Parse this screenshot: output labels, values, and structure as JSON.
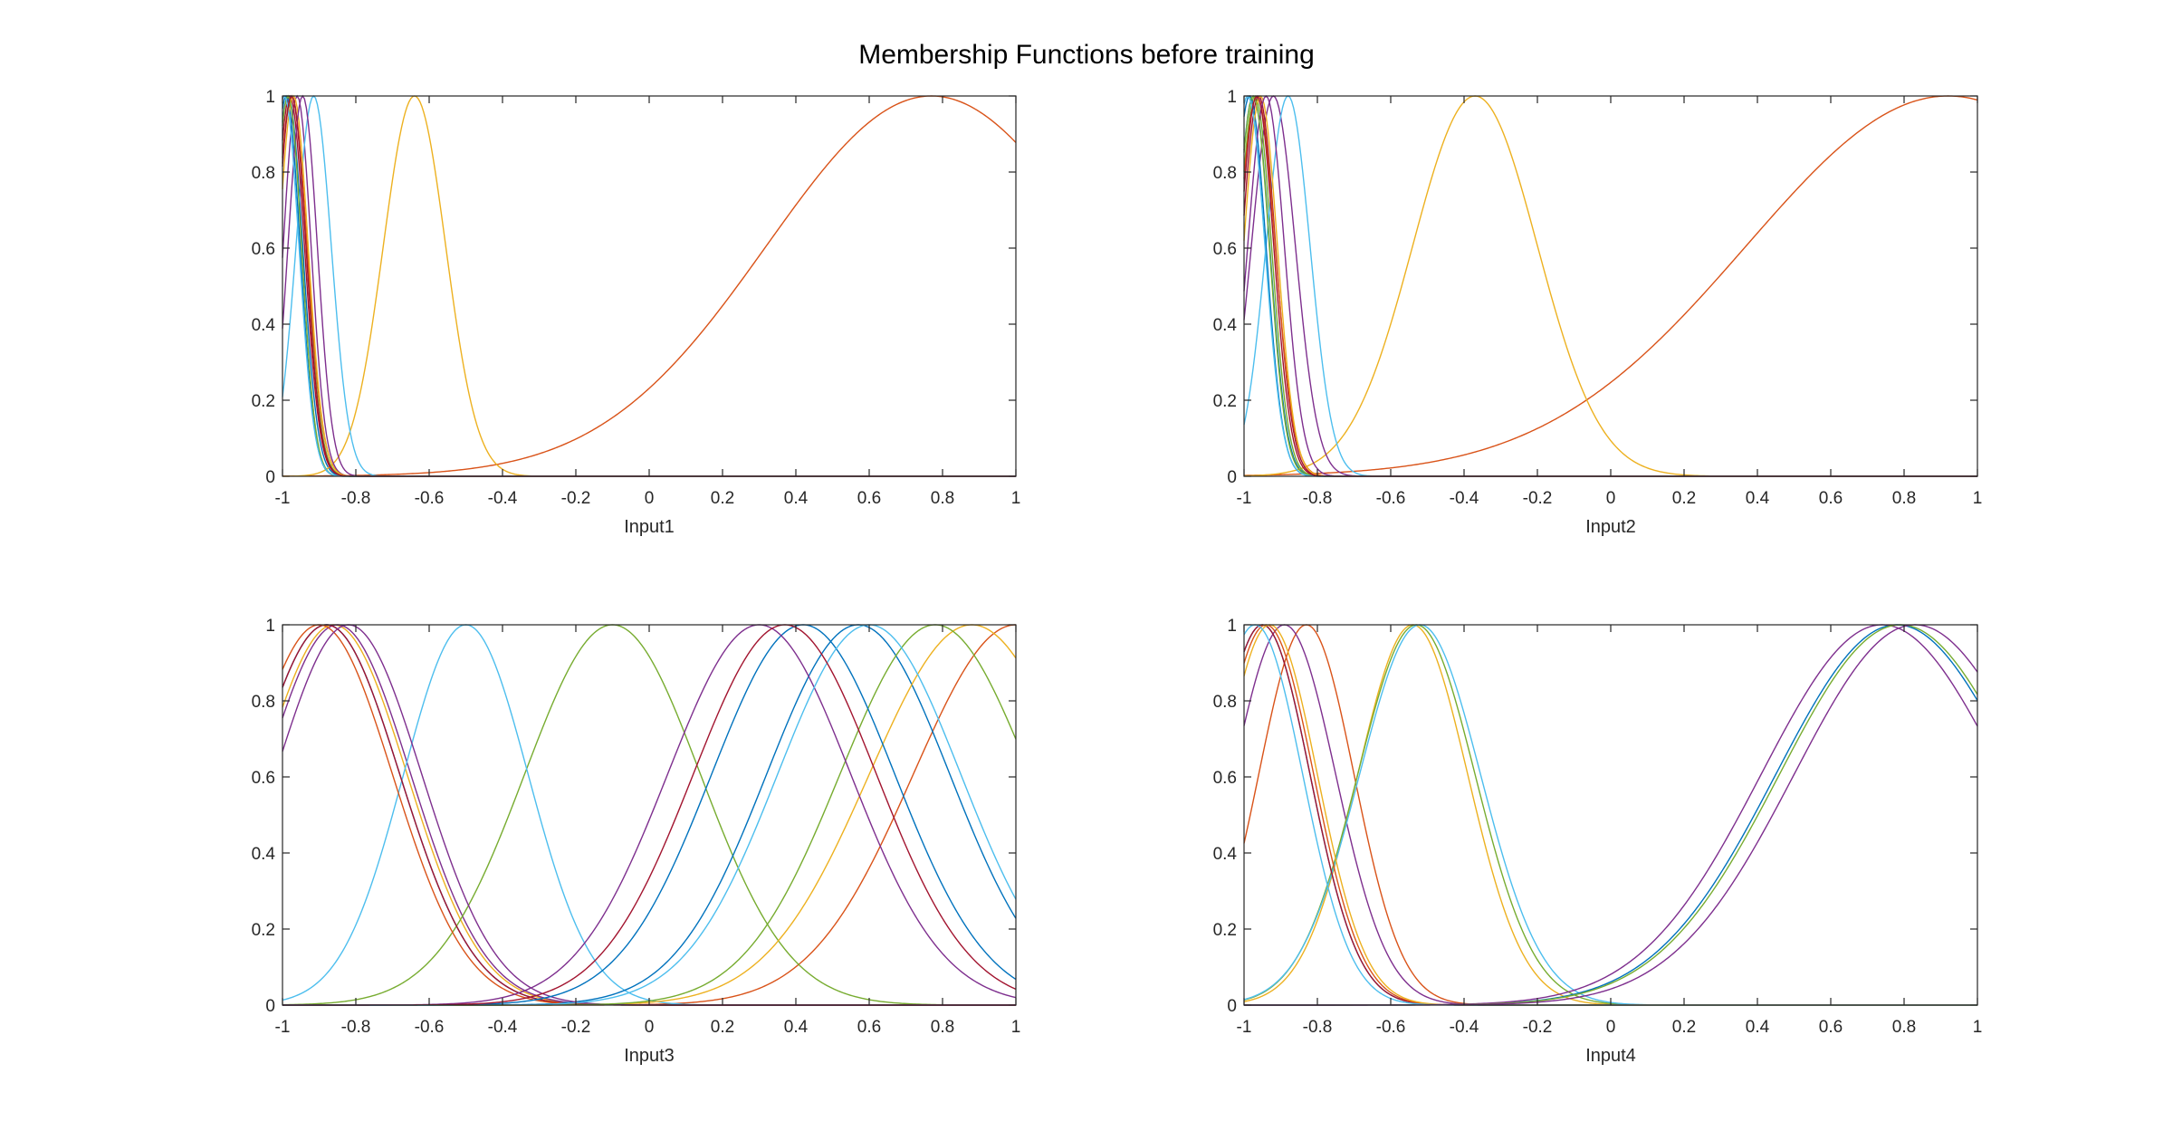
{
  "figure": {
    "title": "Membership Functions before training"
  },
  "chart_data": [
    {
      "type": "line",
      "title": "",
      "xlabel": "Input1",
      "ylabel": "",
      "xlim": [
        -1,
        1
      ],
      "ylim": [
        0,
        1
      ],
      "xticks": [
        -1,
        -0.8,
        -0.6,
        -0.4,
        -0.2,
        0,
        0.2,
        0.4,
        0.6,
        0.8,
        1
      ],
      "yticks": [
        0,
        0.2,
        0.4,
        0.6,
        0.8,
        1
      ],
      "grid": false,
      "series_kind": "gaussian membership functions",
      "series": [
        {
          "center": -0.985,
          "sigma": 0.04,
          "color": "#0072BD"
        },
        {
          "center": 0.77,
          "sigma": 0.45,
          "color": "#D95319"
        },
        {
          "center": -0.64,
          "sigma": 0.085,
          "color": "#EDB120"
        },
        {
          "center": -0.96,
          "sigma": 0.038,
          "color": "#7E2F8E"
        },
        {
          "center": -0.975,
          "sigma": 0.04,
          "color": "#77AC30"
        },
        {
          "center": -0.915,
          "sigma": 0.048,
          "color": "#4DBEEE"
        },
        {
          "center": -0.98,
          "sigma": 0.04,
          "color": "#A2142F"
        },
        {
          "center": -0.99,
          "sigma": 0.038,
          "color": "#0072BD"
        },
        {
          "center": -0.975,
          "sigma": 0.042,
          "color": "#D95319"
        },
        {
          "center": -0.97,
          "sigma": 0.04,
          "color": "#EDB120"
        },
        {
          "center": -0.945,
          "sigma": 0.04,
          "color": "#7E2F8E"
        },
        {
          "center": -0.985,
          "sigma": 0.037,
          "color": "#77AC30"
        },
        {
          "center": -0.995,
          "sigma": 0.04,
          "color": "#4DBEEE"
        },
        {
          "center": -0.975,
          "sigma": 0.039,
          "color": "#A2142F"
        }
      ]
    },
    {
      "type": "line",
      "title": "",
      "xlabel": "Input2",
      "ylabel": "",
      "xlim": [
        -1,
        1
      ],
      "ylim": [
        0,
        1
      ],
      "xticks": [
        -1,
        -0.8,
        -0.6,
        -0.4,
        -0.2,
        0,
        0.2,
        0.4,
        0.6,
        0.8,
        1
      ],
      "yticks": [
        0,
        0.2,
        0.4,
        0.6,
        0.8,
        1
      ],
      "grid": false,
      "series_kind": "gaussian membership functions",
      "series": [
        {
          "center": -0.975,
          "sigma": 0.045,
          "color": "#0072BD"
        },
        {
          "center": 0.92,
          "sigma": 0.55,
          "color": "#D95319"
        },
        {
          "center": -0.37,
          "sigma": 0.17,
          "color": "#EDB120"
        },
        {
          "center": -0.92,
          "sigma": 0.06,
          "color": "#7E2F8E"
        },
        {
          "center": -0.97,
          "sigma": 0.045,
          "color": "#77AC30"
        },
        {
          "center": -0.88,
          "sigma": 0.06,
          "color": "#4DBEEE"
        },
        {
          "center": -0.96,
          "sigma": 0.046,
          "color": "#A2142F"
        },
        {
          "center": -0.985,
          "sigma": 0.045,
          "color": "#0072BD"
        },
        {
          "center": -0.965,
          "sigma": 0.05,
          "color": "#D95319"
        },
        {
          "center": -0.955,
          "sigma": 0.046,
          "color": "#EDB120"
        },
        {
          "center": -0.94,
          "sigma": 0.05,
          "color": "#7E2F8E"
        },
        {
          "center": -0.975,
          "sigma": 0.044,
          "color": "#77AC30"
        },
        {
          "center": -0.99,
          "sigma": 0.047,
          "color": "#4DBEEE"
        },
        {
          "center": -0.965,
          "sigma": 0.046,
          "color": "#A2142F"
        }
      ]
    },
    {
      "type": "line",
      "title": "",
      "xlabel": "Input3",
      "ylabel": "",
      "xlim": [
        -1,
        1
      ],
      "ylim": [
        0,
        1
      ],
      "xticks": [
        -1,
        -0.8,
        -0.6,
        -0.4,
        -0.2,
        0,
        0.2,
        0.4,
        0.6,
        0.8,
        1
      ],
      "yticks": [
        0,
        0.2,
        0.4,
        0.6,
        0.8,
        1
      ],
      "grid": false,
      "series_kind": "gaussian membership functions",
      "series": [
        {
          "center": -0.88,
          "sigma": 0.2,
          "color": "#0072BD"
        },
        {
          "center": 1.0,
          "sigma": 0.28,
          "color": "#D95319"
        },
        {
          "center": -0.86,
          "sigma": 0.2,
          "color": "#EDB120"
        },
        {
          "center": -0.85,
          "sigma": 0.2,
          "color": "#7E2F8E"
        },
        {
          "center": -0.1,
          "sigma": 0.24,
          "color": "#77AC30"
        },
        {
          "center": -0.5,
          "sigma": 0.17,
          "color": "#4DBEEE"
        },
        {
          "center": -0.88,
          "sigma": 0.2,
          "color": "#A2142F"
        },
        {
          "center": 0.57,
          "sigma": 0.25,
          "color": "#0072BD"
        },
        {
          "center": -0.9,
          "sigma": 0.2,
          "color": "#D95319"
        },
        {
          "center": 0.88,
          "sigma": 0.28,
          "color": "#EDB120"
        },
        {
          "center": -0.82,
          "sigma": 0.2,
          "color": "#7E2F8E"
        },
        {
          "center": 0.78,
          "sigma": 0.26,
          "color": "#77AC30"
        },
        {
          "center": 0.42,
          "sigma": 0.25,
          "color": "#0072BD"
        },
        {
          "center": 0.3,
          "sigma": 0.25,
          "color": "#7E2F8E"
        },
        {
          "center": 0.6,
          "sigma": 0.25,
          "color": "#4DBEEE"
        },
        {
          "center": 0.37,
          "sigma": 0.25,
          "color": "#A2142F"
        }
      ]
    },
    {
      "type": "line",
      "title": "",
      "xlabel": "Input4",
      "ylabel": "",
      "xlim": [
        -1,
        1
      ],
      "ylim": [
        0,
        1
      ],
      "xticks": [
        -1,
        -0.8,
        -0.6,
        -0.4,
        -0.2,
        0,
        0.2,
        0.4,
        0.6,
        0.8,
        1
      ],
      "yticks": [
        0,
        0.2,
        0.4,
        0.6,
        0.8,
        1
      ],
      "grid": false,
      "series_kind": "gaussian membership functions",
      "series": [
        {
          "center": -0.95,
          "sigma": 0.13,
          "color": "#0072BD"
        },
        {
          "center": -0.83,
          "sigma": 0.13,
          "color": "#D95319"
        },
        {
          "center": -0.54,
          "sigma": 0.15,
          "color": "#EDB120"
        },
        {
          "center": -0.89,
          "sigma": 0.14,
          "color": "#7E2F8E"
        },
        {
          "center": -0.53,
          "sigma": 0.16,
          "color": "#77AC30"
        },
        {
          "center": -0.52,
          "sigma": 0.165,
          "color": "#4DBEEE"
        },
        {
          "center": -0.95,
          "sigma": 0.13,
          "color": "#A2142F"
        },
        {
          "center": 0.78,
          "sigma": 0.33,
          "color": "#0072BD"
        },
        {
          "center": -0.94,
          "sigma": 0.13,
          "color": "#D95319"
        },
        {
          "center": -0.93,
          "sigma": 0.13,
          "color": "#EDB120"
        },
        {
          "center": 0.74,
          "sigma": 0.33,
          "color": "#7E2F8E"
        },
        {
          "center": 0.79,
          "sigma": 0.33,
          "color": "#77AC30"
        },
        {
          "center": -0.97,
          "sigma": 0.13,
          "color": "#4DBEEE"
        },
        {
          "center": 0.83,
          "sigma": 0.33,
          "color": "#7E2F8E"
        }
      ]
    }
  ]
}
